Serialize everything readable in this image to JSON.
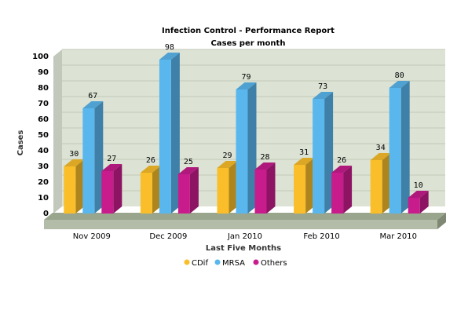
{
  "chart_data": {
    "type": "bar",
    "title": "Infection Control - Performance Report",
    "subtitle": "Cases per month",
    "xlabel": "Last Five Months",
    "ylabel": "Cases",
    "ylim": [
      0,
      100
    ],
    "yticks": [
      "0",
      "10",
      "20",
      "30",
      "40",
      "50",
      "60",
      "70",
      "80",
      "90",
      "100"
    ],
    "categories": [
      "Nov 2009",
      "Dec 2009",
      "Jan 2010",
      "Feb 2010",
      "Mar 2010"
    ],
    "series": [
      {
        "name": "CDif",
        "values": [
          30,
          26,
          29,
          31,
          34
        ],
        "color": "#F9BE2A"
      },
      {
        "name": "MRSA",
        "values": [
          67,
          98,
          79,
          73,
          80
        ],
        "color": "#59B7EE"
      },
      {
        "name": "Others",
        "values": [
          27,
          25,
          28,
          26,
          10
        ],
        "color": "#C81C8D"
      }
    ],
    "grid": true,
    "legend": "bottom",
    "plot_background": "#DCE3D4"
  }
}
